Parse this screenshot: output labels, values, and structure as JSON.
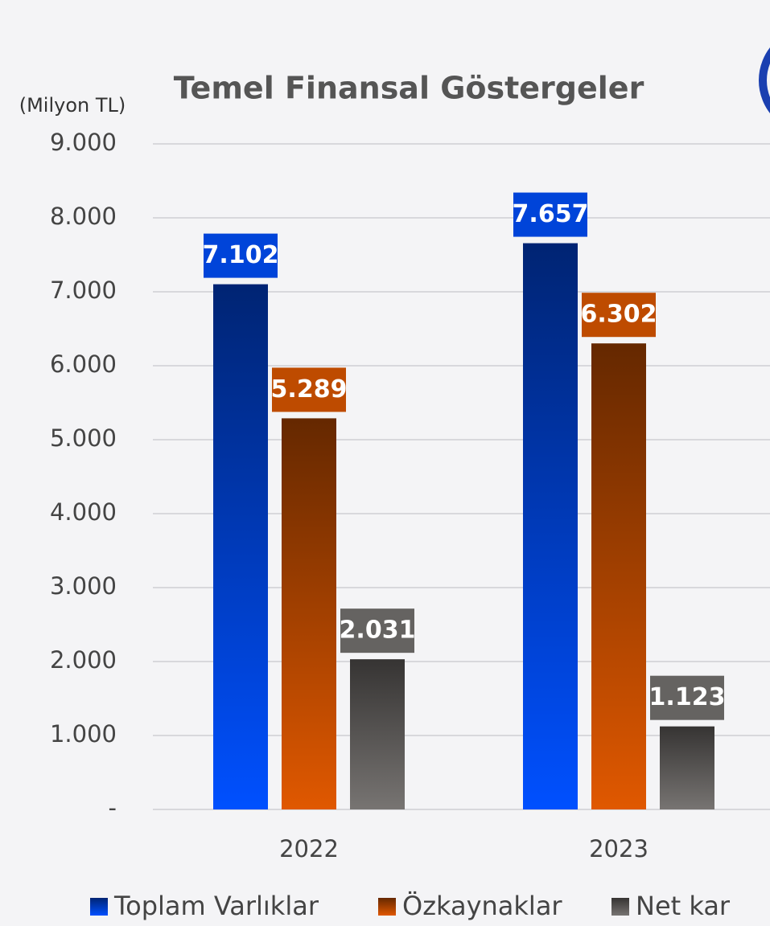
{
  "chart_data": {
    "type": "bar",
    "title": "Temel Finansal Göstergeler",
    "y_axis_label": "(Milyon TL)",
    "categories": [
      "2022",
      "2023"
    ],
    "series": [
      {
        "name": "Toplam Varlıklar",
        "color": "#0050ff",
        "values": [
          7102,
          7657
        ],
        "value_labels": [
          "7.102",
          "7.657"
        ]
      },
      {
        "name": "Özkaynaklar",
        "color": "#e05800",
        "values": [
          5289,
          6302
        ],
        "value_labels": [
          "5.289",
          "6.302"
        ]
      },
      {
        "name": "Net kar",
        "color": "#777472",
        "values": [
          2031,
          1123
        ],
        "value_labels": [
          "2.031",
          "1.123"
        ]
      }
    ],
    "ylim": [
      0,
      9000
    ],
    "yticks": [
      {
        "value": 0,
        "label": "-"
      },
      {
        "value": 1000,
        "label": "1.000"
      },
      {
        "value": 2000,
        "label": "2.000"
      },
      {
        "value": 3000,
        "label": "3.000"
      },
      {
        "value": 4000,
        "label": "4.000"
      },
      {
        "value": 5000,
        "label": "5.000"
      },
      {
        "value": 6000,
        "label": "6.000"
      },
      {
        "value": 7000,
        "label": "7.000"
      },
      {
        "value": 8000,
        "label": "8.000"
      },
      {
        "value": 9000,
        "label": "9.000"
      }
    ],
    "grid": true,
    "legend": "bottom"
  }
}
